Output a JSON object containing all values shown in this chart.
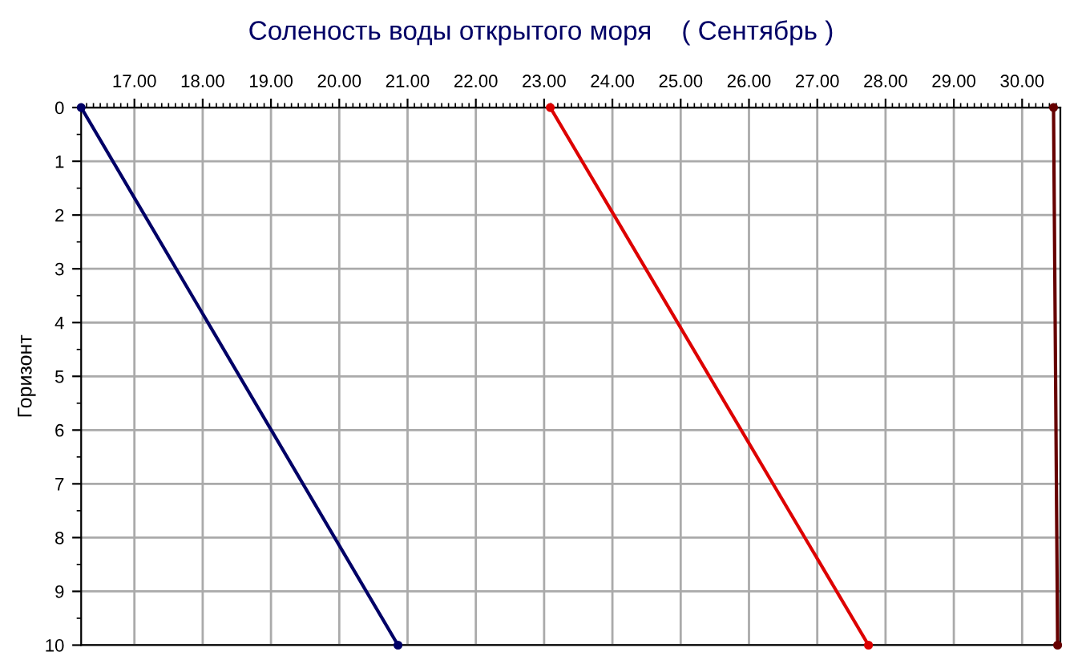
{
  "chart_data": {
    "type": "line",
    "title": "Соленость воды открытого моря    ( Сентябрь )",
    "ylabel": "Горизонт",
    "series": [
      {
        "color": "#000066",
        "x": [
          16.22,
          20.86
        ],
        "values": [
          0,
          10
        ]
      },
      {
        "color": "#dd0000",
        "x": [
          23.09,
          27.75
        ],
        "values": [
          0,
          10
        ]
      },
      {
        "color": "#660000",
        "x": [
          30.46,
          30.52
        ],
        "values": [
          0,
          10
        ]
      }
    ],
    "xlim": [
      16.22,
      30.56
    ],
    "xticks": [
      {
        "value": 17,
        "label": "17.00"
      },
      {
        "value": 18,
        "label": "18.00"
      },
      {
        "value": 19,
        "label": "19.00"
      },
      {
        "value": 20,
        "label": "20.00"
      },
      {
        "value": 21,
        "label": "21.00"
      },
      {
        "value": 22,
        "label": "22.00"
      },
      {
        "value": 23,
        "label": "23.00"
      },
      {
        "value": 24,
        "label": "24.00"
      },
      {
        "value": 25,
        "label": "25.00"
      },
      {
        "value": 26,
        "label": "26.00"
      },
      {
        "value": 27,
        "label": "27.00"
      },
      {
        "value": 28,
        "label": "28.00"
      },
      {
        "value": 29,
        "label": "29.00"
      },
      {
        "value": 30,
        "label": "30.00"
      }
    ],
    "ylim": [
      10,
      0
    ],
    "yticks": [
      0,
      1,
      2,
      3,
      4,
      5,
      6,
      7,
      8,
      9,
      10
    ],
    "grid": true,
    "marker": "circle",
    "line_style": "solid",
    "legend": false
  }
}
